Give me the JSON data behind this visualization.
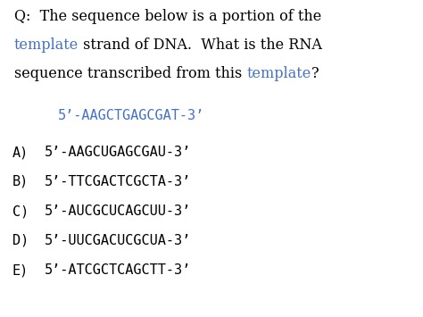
{
  "background_color": "#ffffff",
  "fig_width": 4.74,
  "fig_height": 3.55,
  "dpi": 100,
  "serif_font": "DejaVu Serif",
  "mono_font": "DejaVu Sans Mono",
  "text_color": "#000000",
  "blue_color": "#4472c4",
  "q_fontsize": 11.5,
  "seq_fontsize": 11.0,
  "ans_label_fontsize": 11.0,
  "ans_seq_fontsize": 11.0,
  "q_lines": [
    [
      {
        "text": "Q:  The sequence below is a portion of the",
        "color": "#000000"
      }
    ],
    [
      {
        "text": "template",
        "color": "#4472c4"
      },
      {
        "text": " strand of DNA.  What is the RNA",
        "color": "#000000"
      }
    ],
    [
      {
        "text": "sequence transcribed from this ",
        "color": "#000000"
      },
      {
        "text": "template",
        "color": "#4472c4"
      },
      {
        "text": "?",
        "color": "#000000"
      }
    ]
  ],
  "template_seq": "5’-AAGCTGAGCGAT-3’",
  "template_seq_color": "#4472c4",
  "answers": [
    {
      "label": "A)",
      "seq": "5’-AAGCUGAGCGAU-3’"
    },
    {
      "label": "B)",
      "seq": "5’-TTCGACTCGCTA-3’"
    },
    {
      "label": "C)",
      "seq": "5’-AUCGCUCAGCUU-3’"
    },
    {
      "label": "D)",
      "seq": "5’-UUCGACUCGCUA-3’"
    },
    {
      "label": "E)",
      "seq": "5’-ATCGCTCAGCTT-3’"
    }
  ]
}
